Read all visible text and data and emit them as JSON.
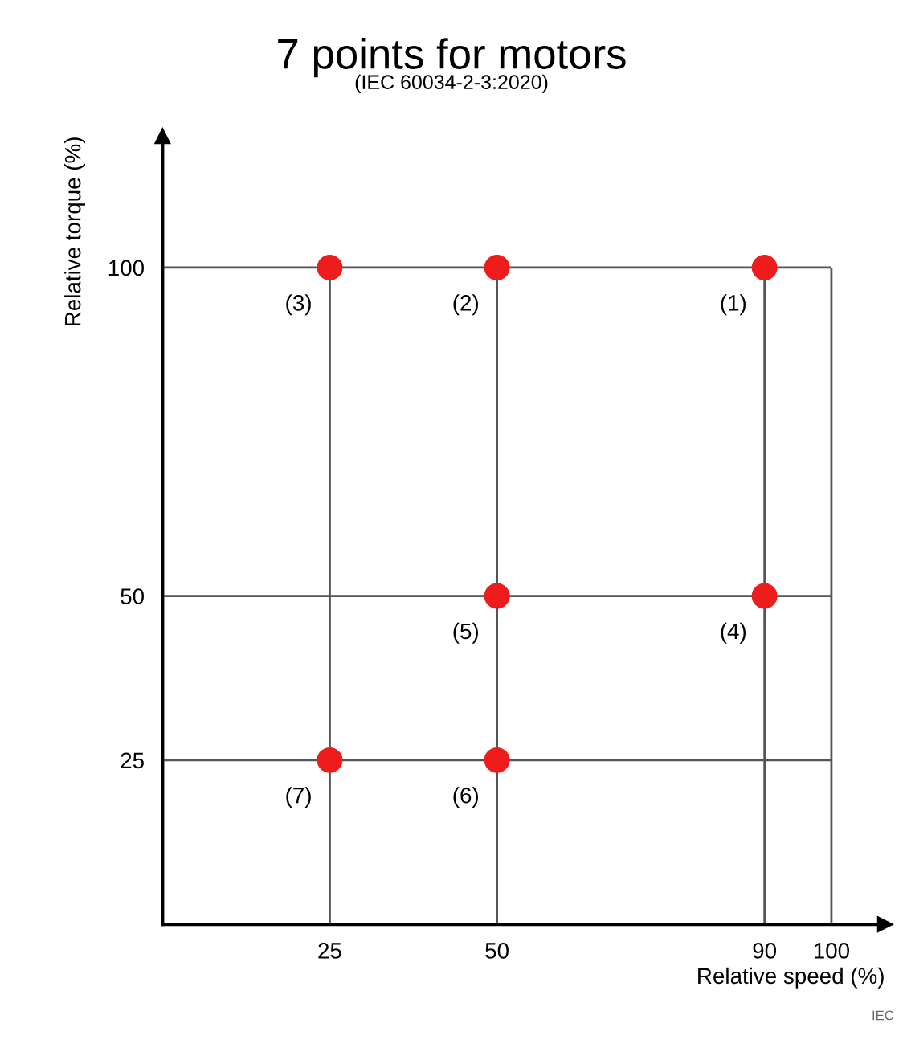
{
  "chart_data": {
    "type": "scatter",
    "title": "7 points for motors",
    "subtitle": "(IEC 60034-2-3:2020)",
    "xlabel": "Relative speed (%)",
    "ylabel": "Relative torque (%)",
    "x": [
      90,
      50,
      25,
      90,
      50,
      50,
      25
    ],
    "series": [
      {
        "color": "#ee1c1c",
        "values": [
          100,
          100,
          100,
          50,
          50,
          25,
          25
        ]
      }
    ],
    "xlim": [
      0,
      108
    ],
    "ylim": [
      0,
      120
    ],
    "xticks": [
      25,
      50,
      90,
      100
    ],
    "yticks": [
      25,
      50,
      100
    ],
    "grid": true,
    "marker": "circle",
    "legend": false,
    "annotations": [
      {
        "text": "(1)",
        "x": 90,
        "y": 100
      },
      {
        "text": "(2)",
        "x": 50,
        "y": 100
      },
      {
        "text": "(3)",
        "x": 25,
        "y": 100
      },
      {
        "text": "(4)",
        "x": 90,
        "y": 50
      },
      {
        "text": "(5)",
        "x": 50,
        "y": 50
      },
      {
        "text": "(6)",
        "x": 50,
        "y": 25
      },
      {
        "text": "(7)",
        "x": 25,
        "y": 25
      },
      "IEC"
    ]
  }
}
